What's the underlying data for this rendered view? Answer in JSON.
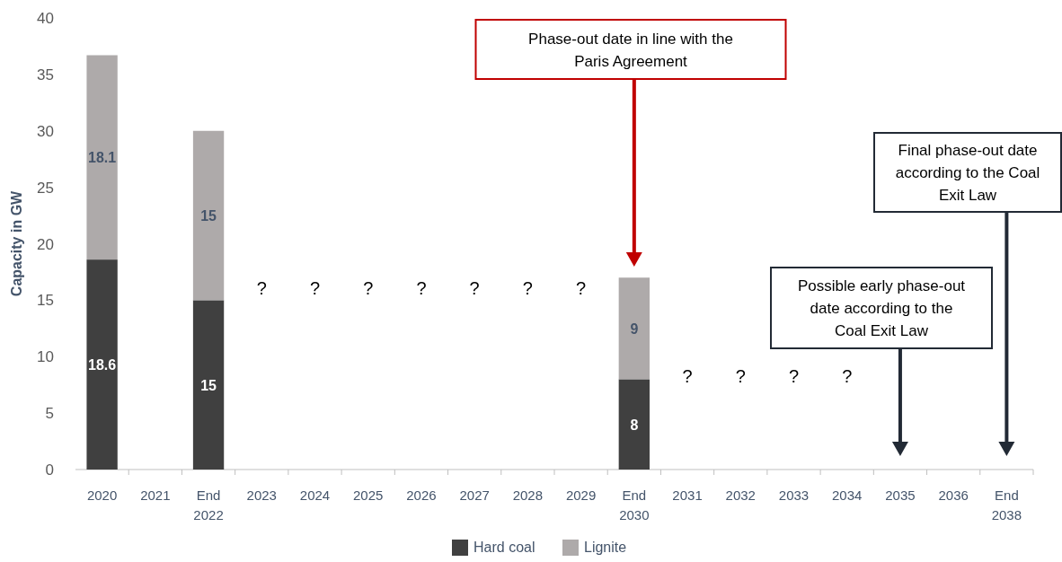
{
  "chart_data": {
    "type": "bar",
    "stacked": true,
    "ylabel": "Capacity in GW",
    "categories": [
      "2020",
      "2021",
      "End 2022",
      "2023",
      "2024",
      "2025",
      "2026",
      "2027",
      "2028",
      "2029",
      "End 2030",
      "2031",
      "2032",
      "2033",
      "2034",
      "2035",
      "2036",
      "End 2038"
    ],
    "series": [
      {
        "name": "Hard coal",
        "color": "#404040",
        "values": [
          18.6,
          null,
          15,
          null,
          null,
          null,
          null,
          null,
          null,
          null,
          8,
          null,
          null,
          null,
          null,
          null,
          null,
          null
        ]
      },
      {
        "name": "Lignite",
        "color": "#aeaaaa",
        "values": [
          18.1,
          null,
          15,
          null,
          null,
          null,
          null,
          null,
          null,
          null,
          9,
          null,
          null,
          null,
          null,
          null,
          null,
          null
        ]
      }
    ],
    "ylim": [
      0,
      40
    ],
    "yticks": [
      0,
      5,
      10,
      15,
      20,
      25,
      30,
      35,
      40
    ],
    "grid": false,
    "legend": "bottom",
    "data_labels": true,
    "annotations": [
      "Phase-out date in line with the Paris Agreement",
      "Possible early phase-out date according to the Coal Exit Law",
      "Final phase-out date according to the Coal Exit Law",
      "?",
      "?",
      "?",
      "?",
      "?",
      "?",
      "?",
      "?",
      "?",
      "?",
      "?"
    ]
  }
}
